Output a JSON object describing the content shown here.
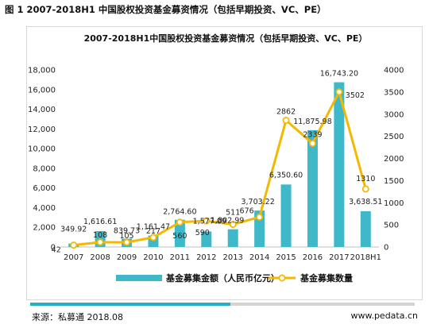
{
  "figure_caption": "图 1 2007-2018H1 中国股权投资基金募资情况（包括早期投资、VC、PE）",
  "source_label": "来源：私募通 2018.08",
  "website": "www.pedata.cn",
  "progress_fraction": 0.52,
  "colors": {
    "bars": "#3fb8c9",
    "line": "#f5b800",
    "marker_fill": "#ffffff",
    "progress": "#22b0c6"
  },
  "chart_data": {
    "type": "bar",
    "title": "2007-2018H1中国股权投资基金募资情况（包括早期投资、VC、PE）",
    "categories": [
      "2007",
      "2008",
      "2009",
      "2010",
      "2011",
      "2012",
      "2013",
      "2014",
      "2015",
      "2016",
      "2017",
      "2018H1"
    ],
    "series": [
      {
        "name": "基金募集金额（人民币亿元）",
        "type": "bar",
        "axis": "left",
        "values": [
          349.92,
          1616.61,
          839.73,
          1161.47,
          2764.6,
          1577.09,
          1802.99,
          3703.22,
          6350.6,
          11875.98,
          16743.2,
          3638.51
        ],
        "labels": [
          "349.92",
          "1,616.61",
          "839.73",
          "1,161.47",
          "2,764.60",
          "1,577.09",
          "1,802.99",
          "3,703.22",
          "6,350.60",
          "11,875.98",
          "16,743.20",
          "3,638.51"
        ]
      },
      {
        "name": "基金募集数量",
        "type": "line",
        "axis": "right",
        "values": [
          42,
          108,
          105,
          217,
          560,
          590,
          511,
          676,
          2862,
          2339,
          3502,
          1310
        ],
        "labels": [
          "42",
          "108",
          "105",
          "217",
          "560",
          "590",
          "511",
          "676",
          "2862",
          "2339",
          "3502",
          "1310"
        ]
      }
    ],
    "y_left": {
      "range": [
        0,
        18000
      ],
      "ticks": [
        "0",
        "2,000",
        "4,000",
        "6,000",
        "8,000",
        "10,000",
        "12,000",
        "14,000",
        "16,000",
        "18,000"
      ]
    },
    "y_right": {
      "range": [
        0,
        4000
      ],
      "ticks": [
        "0",
        "500",
        "1000",
        "1500",
        "2000",
        "2500",
        "3000",
        "3500",
        "4000"
      ]
    },
    "grid": false,
    "legend_position": "bottom"
  }
}
